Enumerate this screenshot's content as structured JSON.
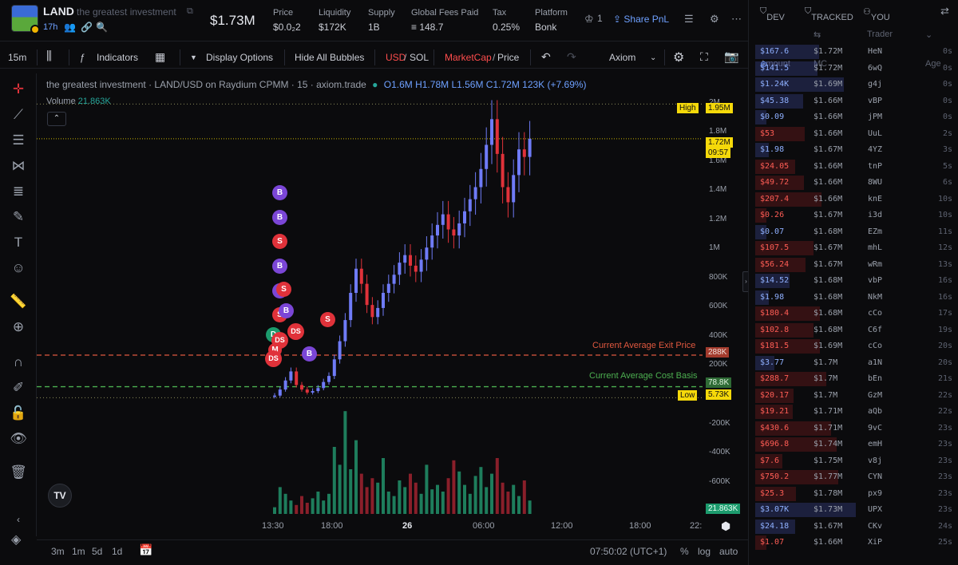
{
  "header": {
    "token_symbol": "LAND",
    "token_name": "the greatest investment",
    "age": "17h",
    "market_cap": "$1.73M",
    "stats": [
      {
        "label": "Price",
        "value": "$0.0₂2"
      },
      {
        "label": "Liquidity",
        "value": "$172K"
      },
      {
        "label": "Supply",
        "value": "1B"
      },
      {
        "label": "Global Fees Paid",
        "value": "≡ 148.7"
      },
      {
        "label": "Tax",
        "value": "0.25%"
      },
      {
        "label": "Platform",
        "value": "Bonk"
      }
    ],
    "watch_count": "1",
    "share_label": "Share PnL"
  },
  "chart_toolbar": {
    "interval": "15m",
    "indicators": "Indicators",
    "display_options": "Display Options",
    "hide_bubbles": "Hide All Bubbles",
    "usd": "USD",
    "sol": "SOL",
    "marketcap": "MarketCap",
    "price": "Price",
    "theme": "Axiom"
  },
  "legend": {
    "title": "the greatest investment · LAND/USD on Raydium CPMM · 15 · axiom.trade",
    "ohlc": "O1.6M H1.78M L1.56M C1.72M 123K (+7.69%)",
    "volume_label": "Volume",
    "volume_value": "21.863K"
  },
  "chart_lines": {
    "exit_label": "Current Average Exit Price",
    "cost_label": "Current Average Cost Basis",
    "high": "High",
    "low": "Low"
  },
  "y_axis": {
    "ticks": [
      "2M",
      "1.8M",
      "1.6M",
      "1.4M",
      "1.2M",
      "1M",
      "800K",
      "600K",
      "400K",
      "200K",
      "0",
      "-200K",
      "-400K",
      "-600K"
    ],
    "high_value": "1.95M",
    "current_value": "1.72M",
    "countdown": "09:57",
    "exit_value": "288K",
    "cost_value": "78.8K",
    "low_value": "5.73K",
    "volume_value": "21.863K"
  },
  "x_axis": {
    "ticks": [
      "13:30",
      "18:00",
      "26",
      "06:00",
      "12:00",
      "18:00",
      "22:"
    ]
  },
  "bottom": {
    "ranges": [
      "3m",
      "1m",
      "5d",
      "1d"
    ],
    "time": "07:50:02 (UTC+1)",
    "percent": "%",
    "log": "log",
    "auto": "auto"
  },
  "chart_data": {
    "type": "candlestick",
    "title": "LAND/USD on Raydium CPMM · 15",
    "x_ticks": [
      "13:30",
      "18:00",
      "26",
      "06:00",
      "12:00",
      "18:00"
    ],
    "y_range": [
      -700000,
      2100000
    ],
    "ohlc_last": {
      "open": 1600000,
      "high": 1780000,
      "low": 1560000,
      "close": 1720000
    },
    "high": 1950000,
    "low": 5730,
    "current_average_exit_price": 288000,
    "current_average_cost_basis": 78800,
    "close_series": [
      20000,
      60000,
      120000,
      180000,
      90000,
      60000,
      40000,
      50000,
      70000,
      110000,
      150000,
      260000,
      380000,
      520000,
      700000,
      860000,
      760000,
      620000,
      540000,
      600000,
      700000,
      760000,
      820000,
      900000,
      950000,
      880000,
      840000,
      920000,
      1000000,
      1080000,
      1150000,
      1220000,
      1120000,
      1080000,
      1160000,
      1240000,
      1320000,
      1400000,
      1520000,
      1680000,
      1850000,
      1620000,
      1400000,
      1300000,
      1480000,
      1650000,
      1600000,
      1720000
    ],
    "volume_series": [
      3,
      12,
      9,
      6,
      4,
      8,
      5,
      7,
      10,
      6,
      9,
      30,
      22,
      46,
      20,
      33,
      18,
      12,
      16,
      14,
      25,
      10,
      8,
      15,
      12,
      18,
      14,
      9,
      22,
      11,
      13,
      10,
      16,
      24,
      19,
      13,
      9,
      17,
      21,
      12,
      18,
      25,
      14,
      10,
      13,
      8,
      15,
      6
    ]
  },
  "right_panel": {
    "tabs": [
      "DEV",
      "TRACKED",
      "YOU"
    ],
    "columns": [
      "Amount",
      "MC",
      "Trader",
      "Age"
    ],
    "trades": [
      {
        "amount": "$167.6",
        "mc": "$1.72M",
        "trader": "HeN",
        "age": "0s",
        "side": "buy"
      },
      {
        "amount": "$141.5",
        "mc": "$1.72M",
        "trader": "6wQ",
        "age": "0s",
        "side": "buy"
      },
      {
        "amount": "$1.24K",
        "mc": "$1.69M",
        "trader": "g4j",
        "age": "0s",
        "side": "buy"
      },
      {
        "amount": "$45.38",
        "mc": "$1.66M",
        "trader": "vBP",
        "age": "0s",
        "side": "buy"
      },
      {
        "amount": "$0.09",
        "mc": "$1.66M",
        "trader": "jPM",
        "age": "0s",
        "side": "buy"
      },
      {
        "amount": "$53",
        "mc": "$1.66M",
        "trader": "UuL",
        "age": "2s",
        "side": "sell"
      },
      {
        "amount": "$1.98",
        "mc": "$1.67M",
        "trader": "4YZ",
        "age": "3s",
        "side": "buy"
      },
      {
        "amount": "$24.05",
        "mc": "$1.66M",
        "trader": "tnP",
        "age": "5s",
        "side": "sell"
      },
      {
        "amount": "$49.72",
        "mc": "$1.66M",
        "trader": "8WU",
        "age": "6s",
        "side": "sell"
      },
      {
        "amount": "$207.4",
        "mc": "$1.66M",
        "trader": "knE",
        "age": "10s",
        "side": "sell"
      },
      {
        "amount": "$0.26",
        "mc": "$1.67M",
        "trader": "i3d",
        "age": "10s",
        "side": "sell"
      },
      {
        "amount": "$0.07",
        "mc": "$1.68M",
        "trader": "EZm",
        "age": "11s",
        "side": "buy"
      },
      {
        "amount": "$107.5",
        "mc": "$1.67M",
        "trader": "mhL",
        "age": "12s",
        "side": "sell"
      },
      {
        "amount": "$56.24",
        "mc": "$1.67M",
        "trader": "wRm",
        "age": "13s",
        "side": "sell"
      },
      {
        "amount": "$14.52",
        "mc": "$1.68M",
        "trader": "vbP",
        "age": "16s",
        "side": "buy"
      },
      {
        "amount": "$1.98",
        "mc": "$1.68M",
        "trader": "NkM",
        "age": "16s",
        "side": "buy"
      },
      {
        "amount": "$180.4",
        "mc": "$1.68M",
        "trader": "cCo",
        "age": "17s",
        "side": "sell"
      },
      {
        "amount": "$102.8",
        "mc": "$1.68M",
        "trader": "C6f",
        "age": "19s",
        "side": "sell"
      },
      {
        "amount": "$181.5",
        "mc": "$1.69M",
        "trader": "cCo",
        "age": "20s",
        "side": "sell"
      },
      {
        "amount": "$3.77",
        "mc": "$1.7M",
        "trader": "a1N",
        "age": "20s",
        "side": "buy"
      },
      {
        "amount": "$288.7",
        "mc": "$1.7M",
        "trader": "bEn",
        "age": "21s",
        "side": "sell"
      },
      {
        "amount": "$20.17",
        "mc": "$1.7M",
        "trader": "GzM",
        "age": "22s",
        "side": "sell"
      },
      {
        "amount": "$19.21",
        "mc": "$1.71M",
        "trader": "aQb",
        "age": "22s",
        "side": "sell"
      },
      {
        "amount": "$430.6",
        "mc": "$1.71M",
        "trader": "9vC",
        "age": "23s",
        "side": "sell"
      },
      {
        "amount": "$696.8",
        "mc": "$1.74M",
        "trader": "emH",
        "age": "23s",
        "side": "sell"
      },
      {
        "amount": "$7.6",
        "mc": "$1.75M",
        "trader": "v8j",
        "age": "23s",
        "side": "sell"
      },
      {
        "amount": "$750.2",
        "mc": "$1.77M",
        "trader": "CYN",
        "age": "23s",
        "side": "sell"
      },
      {
        "amount": "$25.3",
        "mc": "$1.78M",
        "trader": "px9",
        "age": "23s",
        "side": "sell"
      },
      {
        "amount": "$3.07K",
        "mc": "$1.73M",
        "trader": "UPX",
        "age": "23s",
        "side": "buy"
      },
      {
        "amount": "$24.18",
        "mc": "$1.67M",
        "trader": "CKv",
        "age": "24s",
        "side": "buy"
      },
      {
        "amount": "$1.07",
        "mc": "$1.66M",
        "trader": "XiP",
        "age": "25s",
        "side": "sell"
      }
    ]
  },
  "colors": {
    "up": "#6f7bf7",
    "down": "#e0323a",
    "vol_up": "#1e7d5c",
    "vol_down": "#8a1f2a",
    "accent": "#6ea0ff",
    "exit": "#e0583f",
    "cost": "#4caf50"
  }
}
